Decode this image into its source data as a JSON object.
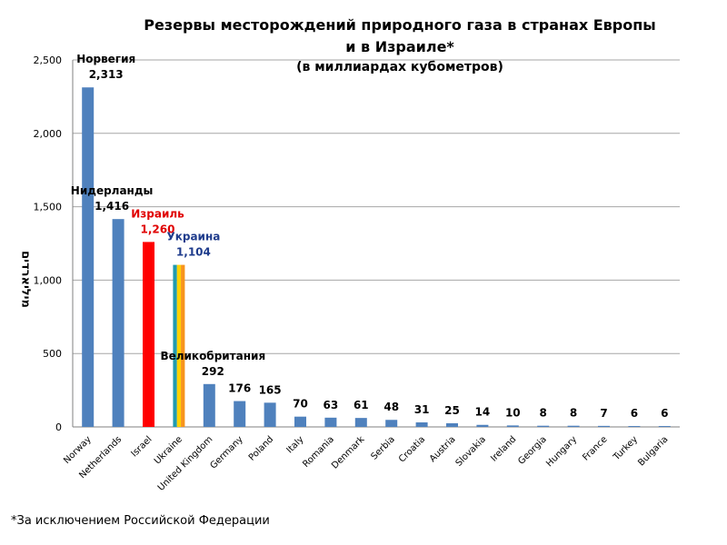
{
  "chart_data": {
    "type": "bar",
    "title": "Резервы месторождений природного газа  в странах Европы и в Израиле*",
    "subtitle": "(в миллиардах кубометров)",
    "ylabel": "מיליארדים",
    "footnote": "*За исключением Российской Федерации",
    "ylim": [
      0,
      2500
    ],
    "yticks": [
      "0",
      "500",
      "1,000",
      "1,500",
      "2,000",
      "2,500"
    ],
    "ytick_values": [
      0,
      500,
      1000,
      1500,
      2000,
      2500
    ],
    "grid": true,
    "categories": [
      "Norway",
      "Netherlands",
      "Israel",
      "Ukraine",
      "United Kingdom",
      "Germany",
      "Poland",
      "Italy",
      "Romania",
      "Denmark",
      "Serbia",
      "Croatia",
      "Austria",
      "Slovakia",
      "Ireland",
      "Georgia",
      "Hungary",
      "France",
      "Turkey",
      "Bulgaria"
    ],
    "values": [
      2313,
      1416,
      1260,
      1104,
      292,
      176,
      165,
      70,
      63,
      61,
      48,
      31,
      25,
      14,
      10,
      8,
      8,
      7,
      6,
      6
    ],
    "data_labels": [
      "2,313",
      "1,416",
      "1,260",
      "1,104",
      "292",
      "176",
      "165",
      "70",
      "63",
      "61",
      "48",
      "31",
      "25",
      "14",
      "10",
      "8",
      "8",
      "7",
      "6",
      "6"
    ],
    "country_labels": {
      "0": "Норвегия",
      "1": "Нидерланды",
      "2": "Израиль",
      "3": "Украина",
      "4": "Великобритания"
    },
    "colors": {
      "default": "#4f81bd",
      "highlight": "#ff0000",
      "ukraine": [
        "#1f9bb0",
        "#ffd200",
        "#f7941d"
      ],
      "label_israel": "#e00000",
      "label_ukraine": "#1f3c8c",
      "grid": "#a6a6a6"
    }
  }
}
